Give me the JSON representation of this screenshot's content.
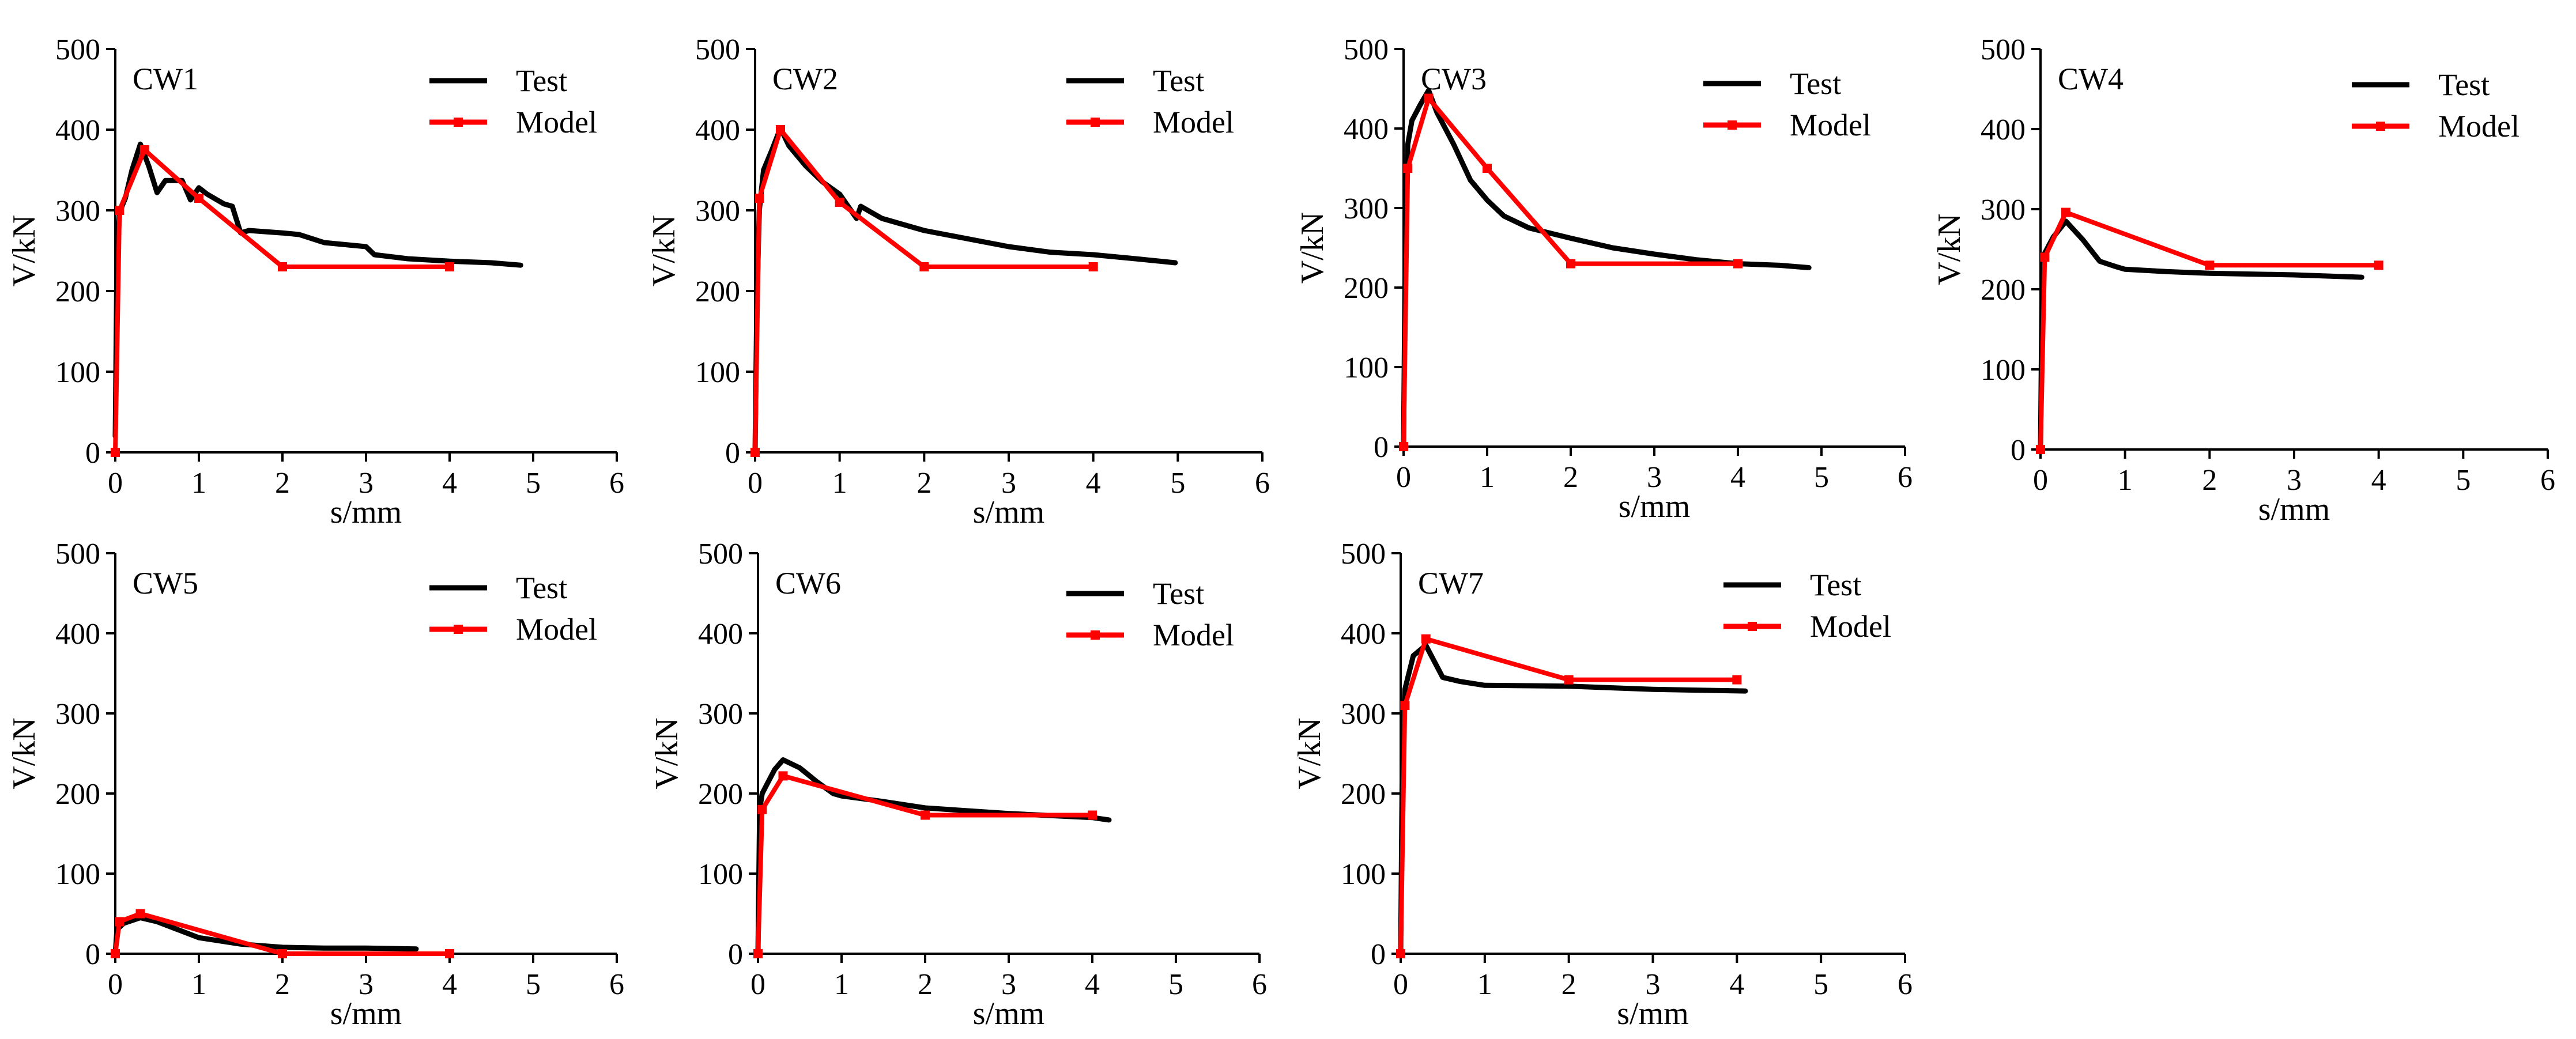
{
  "colors": {
    "test": "#000000",
    "model": "#ff0000",
    "axis": "#000000"
  },
  "chart_data": [
    {
      "type": "line",
      "panel_label": "CW1",
      "xlabel": "s/mm",
      "ylabel": "V/kN",
      "xlim": [
        0,
        6
      ],
      "ylim": [
        0,
        500
      ],
      "xticks": [
        "0",
        "1",
        "2",
        "3",
        "4",
        "5",
        "6"
      ],
      "yticks": [
        "0",
        "100",
        "200",
        "300",
        "400",
        "500"
      ],
      "legend_placement": "top-right",
      "series": [
        {
          "name": "Test",
          "x": [
            0,
            0.02,
            0.05,
            0.08,
            0.12,
            0.2,
            0.3,
            0.4,
            0.5,
            0.6,
            0.8,
            0.9,
            1.0,
            1.1,
            1.3,
            1.4,
            1.5,
            1.6,
            2.0,
            2.2,
            2.5,
            3.0,
            3.1,
            3.5,
            4.0,
            4.5,
            4.85
          ],
          "y": [
            20,
            240,
            295,
            305,
            315,
            350,
            382,
            355,
            322,
            337,
            337,
            313,
            328,
            320,
            308,
            305,
            272,
            275,
            272,
            270,
            260,
            255,
            245,
            240,
            237,
            235,
            232
          ]
        },
        {
          "name": "Model",
          "x": [
            0,
            0.05,
            0.35,
            1.0,
            2.0,
            4.0
          ],
          "y": [
            0,
            300,
            375,
            315,
            230,
            230
          ]
        }
      ]
    },
    {
      "type": "line",
      "panel_label": "CW2",
      "xlabel": "s/mm",
      "ylabel": "V/kN",
      "xlim": [
        0,
        6
      ],
      "ylim": [
        0,
        500
      ],
      "xticks": [
        "0",
        "1",
        "2",
        "3",
        "4",
        "5",
        "6"
      ],
      "yticks": [
        "0",
        "100",
        "200",
        "300",
        "400",
        "500"
      ],
      "legend_placement": "top-right",
      "series": [
        {
          "name": "Test",
          "x": [
            0,
            0.02,
            0.05,
            0.1,
            0.2,
            0.3,
            0.4,
            0.6,
            0.8,
            1.0,
            1.2,
            1.25,
            1.5,
            2.0,
            2.5,
            3.0,
            3.5,
            4.0,
            4.5,
            4.97
          ],
          "y": [
            0,
            180,
            300,
            350,
            375,
            402,
            380,
            355,
            335,
            320,
            290,
            305,
            290,
            275,
            265,
            255,
            248,
            245,
            240,
            235
          ]
        },
        {
          "name": "Model",
          "x": [
            0,
            0.05,
            0.3,
            1.0,
            2.0,
            4.0
          ],
          "y": [
            0,
            315,
            400,
            310,
            230,
            230
          ]
        }
      ]
    },
    {
      "type": "line",
      "panel_label": "CW3",
      "xlabel": "s/mm",
      "ylabel": "V/kN",
      "xlim": [
        0,
        6
      ],
      "ylim": [
        0,
        500
      ],
      "xticks": [
        "0",
        "1",
        "2",
        "3",
        "4",
        "5",
        "6"
      ],
      "yticks": [
        "0",
        "100",
        "200",
        "300",
        "400",
        "500"
      ],
      "legend_placement": "top-right",
      "series": [
        {
          "name": "Test",
          "x": [
            0,
            0.02,
            0.05,
            0.1,
            0.2,
            0.3,
            0.4,
            0.6,
            0.8,
            1.0,
            1.2,
            1.5,
            2.0,
            2.5,
            3.0,
            3.5,
            4.0,
            4.5,
            4.85
          ],
          "y": [
            0,
            250,
            380,
            410,
            430,
            448,
            420,
            380,
            335,
            310,
            290,
            275,
            262,
            250,
            242,
            235,
            230,
            228,
            225
          ]
        },
        {
          "name": "Model",
          "x": [
            0,
            0.05,
            0.3,
            1.0,
            2.0,
            4.0
          ],
          "y": [
            0,
            350,
            438,
            350,
            230,
            230
          ]
        }
      ]
    },
    {
      "type": "line",
      "panel_label": "CW4",
      "xlabel": "s/mm",
      "ylabel": "V/kN",
      "xlim": [
        0,
        6
      ],
      "ylim": [
        0,
        500
      ],
      "xticks": [
        "0",
        "1",
        "2",
        "3",
        "4",
        "5",
        "6"
      ],
      "yticks": [
        "0",
        "100",
        "200",
        "300",
        "400",
        "500"
      ],
      "legend_placement": "top-right",
      "series": [
        {
          "name": "Test",
          "x": [
            0,
            0.02,
            0.05,
            0.15,
            0.3,
            0.5,
            0.7,
            0.9,
            1.0,
            1.5,
            2.0,
            3.0,
            3.8
          ],
          "y": [
            0,
            220,
            245,
            265,
            285,
            262,
            235,
            228,
            225,
            222,
            220,
            218,
            215
          ]
        },
        {
          "name": "Model",
          "x": [
            0,
            0.05,
            0.3,
            2.0,
            4.0
          ],
          "y": [
            0,
            240,
            296,
            230,
            230
          ]
        }
      ]
    },
    {
      "type": "line",
      "panel_label": "CW5",
      "xlabel": "s/mm",
      "ylabel": "V/kN",
      "xlim": [
        0,
        6
      ],
      "ylim": [
        0,
        500
      ],
      "xticks": [
        "0",
        "1",
        "2",
        "3",
        "4",
        "5",
        "6"
      ],
      "yticks": [
        "0",
        "100",
        "200",
        "300",
        "400",
        "500"
      ],
      "legend_placement": "top-right",
      "series": [
        {
          "name": "Test",
          "x": [
            0,
            0.02,
            0.1,
            0.3,
            0.5,
            0.8,
            1.0,
            1.5,
            2.0,
            2.5,
            3.0,
            3.6
          ],
          "y": [
            0,
            30,
            38,
            45,
            40,
            28,
            20,
            12,
            8,
            7,
            7,
            6
          ]
        },
        {
          "name": "Model",
          "x": [
            0,
            0.05,
            0.3,
            2.0,
            4.0
          ],
          "y": [
            0,
            40,
            50,
            0,
            0
          ]
        }
      ]
    },
    {
      "type": "line",
      "panel_label": "CW6",
      "xlabel": "s/mm",
      "ylabel": "V/kN",
      "xlim": [
        0,
        6
      ],
      "ylim": [
        0,
        500
      ],
      "xticks": [
        "0",
        "1",
        "2",
        "3",
        "4",
        "5",
        "6"
      ],
      "yticks": [
        "0",
        "100",
        "200",
        "300",
        "400",
        "500"
      ],
      "legend_placement": "top-right",
      "series": [
        {
          "name": "Test",
          "x": [
            0,
            0.02,
            0.05,
            0.1,
            0.2,
            0.3,
            0.5,
            0.7,
            0.9,
            1.0,
            1.5,
            2.0,
            3.0,
            4.0,
            4.2
          ],
          "y": [
            0,
            180,
            200,
            210,
            230,
            242,
            232,
            215,
            200,
            197,
            190,
            182,
            175,
            170,
            167
          ]
        },
        {
          "name": "Model",
          "x": [
            0,
            0.05,
            0.3,
            2.0,
            4.0
          ],
          "y": [
            0,
            180,
            222,
            173,
            173
          ]
        }
      ]
    },
    {
      "type": "line",
      "panel_label": "CW7",
      "xlabel": "s/mm",
      "ylabel": "V/kN",
      "xlim": [
        0,
        6
      ],
      "ylim": [
        0,
        500
      ],
      "xticks": [
        "0",
        "1",
        "2",
        "3",
        "4",
        "5",
        "6"
      ],
      "yticks": [
        "0",
        "100",
        "200",
        "300",
        "400",
        "500"
      ],
      "legend_placement": "top-right",
      "series": [
        {
          "name": "Test",
          "x": [
            0,
            0.02,
            0.05,
            0.15,
            0.3,
            0.5,
            0.7,
            1.0,
            2.0,
            3.0,
            4.1
          ],
          "y": [
            0,
            250,
            330,
            372,
            385,
            345,
            340,
            335,
            334,
            330,
            328
          ]
        },
        {
          "name": "Model",
          "x": [
            0,
            0.05,
            0.3,
            2.0,
            4.0
          ],
          "y": [
            0,
            310,
            393,
            342,
            342
          ]
        }
      ]
    }
  ]
}
